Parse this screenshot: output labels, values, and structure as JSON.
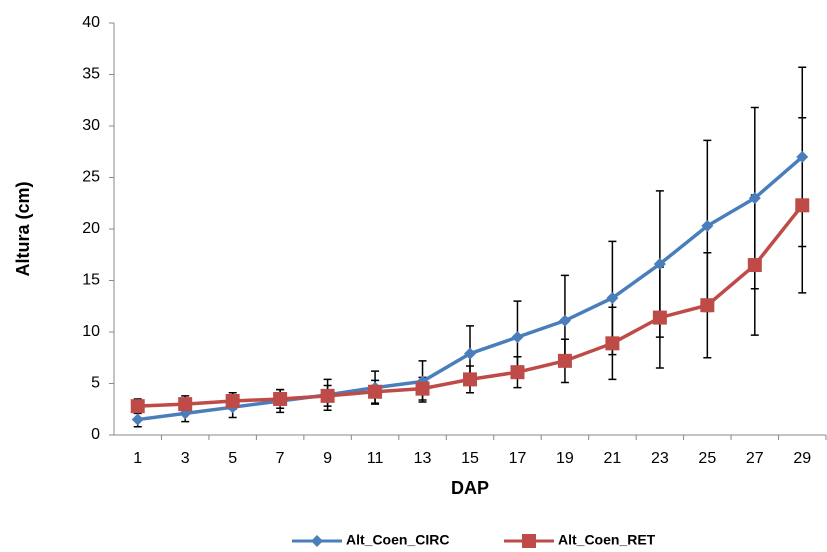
{
  "chart_data": {
    "type": "line",
    "x_label": "DAP",
    "y_label": "Altura (cm)",
    "categories": [
      "1",
      "3",
      "5",
      "7",
      "9",
      "11",
      "13",
      "15",
      "17",
      "19",
      "21",
      "23",
      "25",
      "27",
      "29"
    ],
    "series": [
      {
        "name": "Alt_Coen_CIRC",
        "color": "#4a7ebb",
        "marker": "diamond",
        "values": [
          1.5,
          2.1,
          2.7,
          3.3,
          3.9,
          4.6,
          5.2,
          7.9,
          9.5,
          11.1,
          13.3,
          16.6,
          20.3,
          23.0,
          27.0
        ],
        "errors": [
          0.7,
          0.8,
          1.0,
          1.1,
          1.5,
          1.6,
          2.0,
          2.7,
          3.5,
          4.4,
          5.5,
          7.1,
          8.3,
          8.8,
          8.7
        ]
      },
      {
        "name": "Alt_Coen_RET",
        "color": "#be4b48",
        "marker": "square",
        "values": [
          2.8,
          3.0,
          3.3,
          3.5,
          3.8,
          4.2,
          4.5,
          5.4,
          6.1,
          7.2,
          8.9,
          11.4,
          12.6,
          16.5,
          22.3
        ],
        "errors": [
          0.7,
          0.8,
          0.8,
          0.9,
          1.0,
          1.1,
          1.1,
          1.3,
          1.5,
          2.1,
          3.5,
          4.9,
          5.1,
          6.8,
          8.5
        ]
      }
    ],
    "ylim": [
      0,
      40
    ],
    "yticks": [
      0,
      5,
      10,
      15,
      20,
      25,
      30,
      35,
      40
    ],
    "grid": false
  }
}
